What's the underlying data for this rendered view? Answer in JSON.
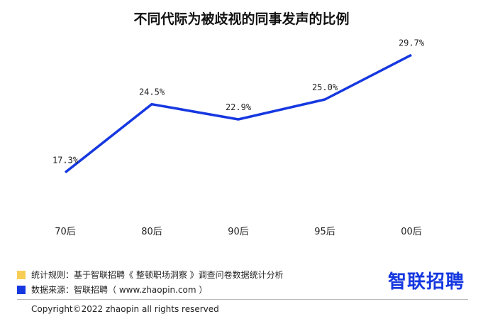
{
  "chart_data": {
    "type": "line",
    "title": "不同代际为被歧视的同事发声的比例",
    "categories": [
      "70后",
      "80后",
      "90后",
      "95后",
      "00后"
    ],
    "series": [
      {
        "values": [
          17.3,
          24.5,
          22.9,
          25.0,
          29.7
        ],
        "labels": [
          "17.3%",
          "24.5%",
          "22.9%",
          "25.0%",
          "29.7%"
        ]
      }
    ],
    "ylim": [
      13,
      31
    ],
    "grid": false,
    "line_color": "#1638e0"
  },
  "legend": {
    "rule_text": "统计规则：基于智联招聘《 整顿职场洞察 》调查问卷数据统计分析",
    "rule_color": "#f7cd55",
    "source_text": "数据来源：智联招聘（ www.zhaopin.com ）",
    "source_color": "#1638e0"
  },
  "brand": {
    "text": "智联招聘",
    "color": "#1638e0"
  },
  "footer": {
    "copyright": "Copyright©2022 zhaopin all rights reserved"
  }
}
